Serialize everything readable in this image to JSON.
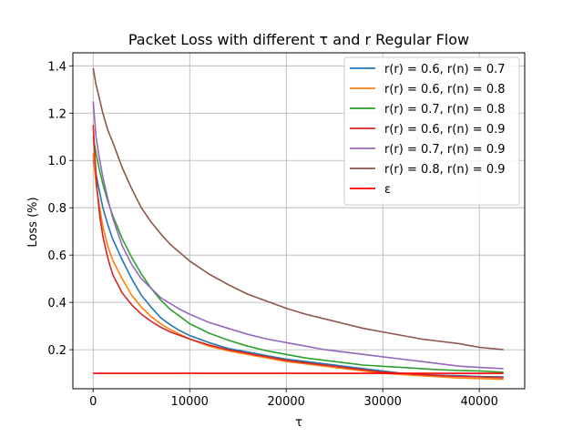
{
  "chart_data": {
    "type": "line",
    "title": "Packet Loss with different τ and r Regular Flow",
    "xlabel": "τ",
    "ylabel": "Loss (%)",
    "xlim": [
      -2100,
      44700
    ],
    "ylim": [
      0.035,
      1.455
    ],
    "x_ticks": [
      0,
      10000,
      20000,
      30000,
      40000
    ],
    "y_ticks": [
      0.2,
      0.4,
      0.6,
      0.8,
      1.0,
      1.2,
      1.4
    ],
    "x_tick_labels": [
      "0",
      "10000",
      "20000",
      "30000",
      "40000"
    ],
    "y_tick_labels": [
      "0.2",
      "0.4",
      "0.6",
      "0.8",
      "1.0",
      "1.2",
      "1.4"
    ],
    "grid": true,
    "legend_position": "top-right",
    "series": [
      {
        "name": "r(r) = 0.6, r(n) = 0.7",
        "color": "#1f77b4",
        "x": [
          0,
          500,
          1000,
          1500,
          2000,
          3000,
          4000,
          5000,
          6000,
          7000,
          8000,
          9000,
          10000,
          12000,
          14000,
          16000,
          18000,
          20000,
          22000,
          24000,
          26000,
          28000,
          30000,
          32000,
          34000,
          36000,
          38000,
          40000,
          42500
        ],
        "y": [
          1.0,
          0.9,
          0.8,
          0.73,
          0.67,
          0.58,
          0.5,
          0.43,
          0.38,
          0.335,
          0.305,
          0.28,
          0.26,
          0.23,
          0.205,
          0.19,
          0.175,
          0.16,
          0.15,
          0.14,
          0.13,
          0.12,
          0.11,
          0.1,
          0.095,
          0.092,
          0.09,
          0.087,
          0.085
        ]
      },
      {
        "name": "r(r) = 0.6, r(n) = 0.8",
        "color": "#ff7f0e",
        "x": [
          0,
          300,
          600,
          1000,
          1500,
          2000,
          3000,
          4000,
          5000,
          6000,
          7000,
          8000,
          9000,
          10000,
          12000,
          14000,
          16000,
          18000,
          20000,
          22000,
          24000,
          26000,
          28000,
          30000,
          32000,
          34000,
          36000,
          38000,
          40000,
          42500
        ],
        "y": [
          1.03,
          0.9,
          0.82,
          0.72,
          0.64,
          0.58,
          0.5,
          0.43,
          0.38,
          0.34,
          0.31,
          0.285,
          0.265,
          0.245,
          0.215,
          0.195,
          0.18,
          0.165,
          0.15,
          0.14,
          0.13,
          0.12,
          0.11,
          0.1,
          0.095,
          0.09,
          0.085,
          0.08,
          0.078,
          0.075
        ]
      },
      {
        "name": "r(r) = 0.7, r(n) = 0.8",
        "color": "#2ca02c",
        "x": [
          0,
          300,
          600,
          1000,
          1500,
          2000,
          3000,
          4000,
          5000,
          6000,
          7000,
          8000,
          9000,
          10000,
          12000,
          14000,
          16000,
          18000,
          20000,
          22000,
          24000,
          26000,
          28000,
          30000,
          32000,
          34000,
          36000,
          38000,
          40000,
          42500
        ],
        "y": [
          1.1,
          1.03,
          0.97,
          0.9,
          0.83,
          0.77,
          0.67,
          0.59,
          0.52,
          0.46,
          0.41,
          0.37,
          0.34,
          0.31,
          0.27,
          0.24,
          0.215,
          0.195,
          0.18,
          0.165,
          0.155,
          0.145,
          0.135,
          0.13,
          0.125,
          0.12,
          0.115,
          0.112,
          0.11,
          0.105
        ]
      },
      {
        "name": "r(r) = 0.6, r(n) = 0.9",
        "color": "#d62728",
        "x": [
          0,
          200,
          400,
          700,
          1000,
          1500,
          2000,
          3000,
          4000,
          5000,
          6000,
          7000,
          8000,
          9000,
          10000,
          12000,
          14000,
          16000,
          18000,
          20000,
          22000,
          24000,
          26000,
          28000,
          30000,
          32000,
          34000,
          36000,
          38000,
          40000,
          42500
        ],
        "y": [
          1.15,
          1.0,
          0.88,
          0.76,
          0.68,
          0.59,
          0.52,
          0.44,
          0.39,
          0.35,
          0.32,
          0.295,
          0.275,
          0.26,
          0.245,
          0.22,
          0.2,
          0.185,
          0.17,
          0.155,
          0.145,
          0.135,
          0.125,
          0.115,
          0.105,
          0.1,
          0.095,
          0.09,
          0.087,
          0.085,
          0.082
        ]
      },
      {
        "name": "r(r) = 0.7, r(n) = 0.9",
        "color": "#9467bd",
        "x": [
          0,
          300,
          600,
          1000,
          1500,
          2000,
          3000,
          4000,
          5000,
          6000,
          7000,
          8000,
          9000,
          10000,
          12000,
          14000,
          16000,
          18000,
          20000,
          22000,
          24000,
          26000,
          28000,
          30000,
          32000,
          34000,
          36000,
          38000,
          40000,
          42500
        ],
        "y": [
          1.25,
          1.1,
          1.02,
          0.93,
          0.84,
          0.76,
          0.64,
          0.56,
          0.5,
          0.46,
          0.42,
          0.395,
          0.37,
          0.35,
          0.315,
          0.29,
          0.265,
          0.245,
          0.23,
          0.215,
          0.2,
          0.19,
          0.18,
          0.17,
          0.16,
          0.15,
          0.14,
          0.13,
          0.125,
          0.12
        ]
      },
      {
        "name": "r(r) = 0.8, r(n) = 0.9",
        "color": "#8c564b",
        "x": [
          0,
          300,
          600,
          1000,
          1500,
          2000,
          3000,
          4000,
          5000,
          6000,
          7000,
          8000,
          9000,
          10000,
          12000,
          14000,
          16000,
          18000,
          20000,
          22000,
          24000,
          26000,
          28000,
          30000,
          32000,
          34000,
          36000,
          38000,
          40000,
          42500
        ],
        "y": [
          1.39,
          1.32,
          1.27,
          1.2,
          1.13,
          1.08,
          0.97,
          0.88,
          0.8,
          0.74,
          0.69,
          0.645,
          0.61,
          0.575,
          0.52,
          0.475,
          0.435,
          0.405,
          0.375,
          0.35,
          0.33,
          0.31,
          0.29,
          0.275,
          0.26,
          0.245,
          0.235,
          0.225,
          0.21,
          0.2
        ]
      },
      {
        "name": "ε",
        "color": "#ff0000",
        "x": [
          0,
          42500
        ],
        "y": [
          0.1,
          0.1
        ]
      }
    ]
  }
}
